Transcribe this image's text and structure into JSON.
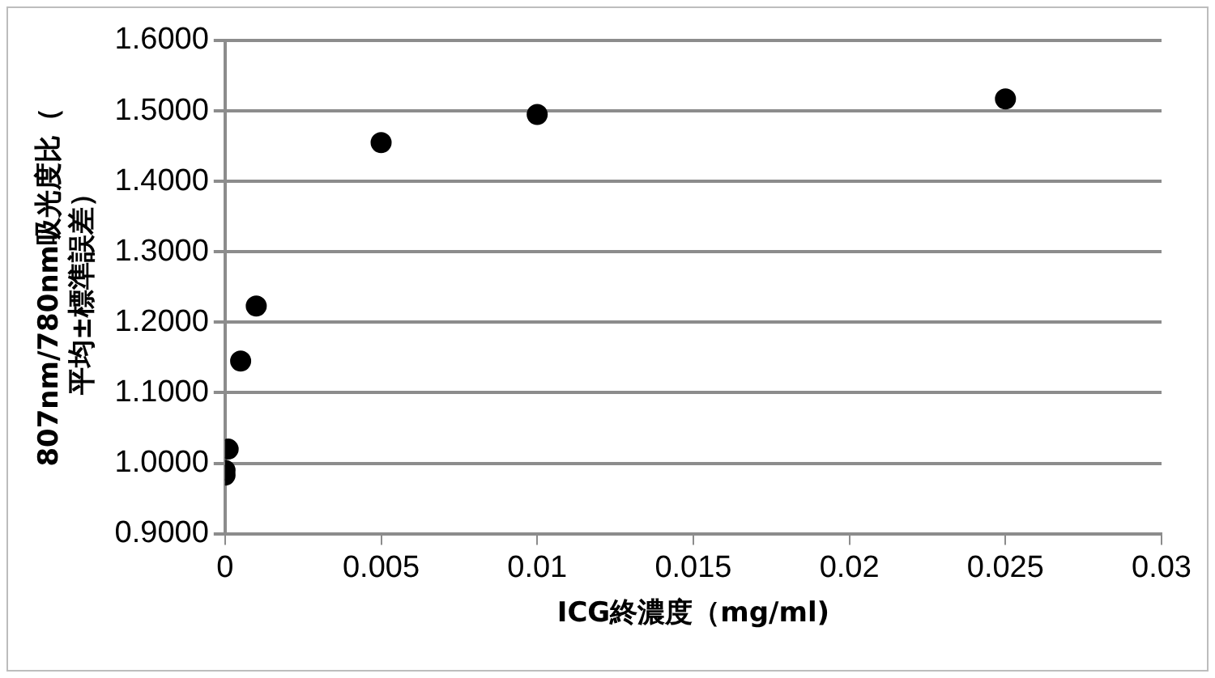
{
  "chart_data": {
    "type": "scatter",
    "xlabel": "ICG終濃度（mg/ml)",
    "ylabel": "807nm/780nm吸光度比（平均±標準誤差）",
    "series": [
      {
        "color": "#000000",
        "x": [
          0,
          0,
          0.0001,
          0.0005,
          0.001,
          0.005,
          0.01,
          0.025
        ],
        "values": [
          0.983,
          0.99,
          1.02,
          1.145,
          1.223,
          1.455,
          1.495,
          1.517
        ]
      }
    ],
    "xlim": [
      0,
      0.03
    ],
    "xticks": [
      0,
      0.005,
      0.01,
      0.015,
      0.02,
      0.025,
      0.03
    ],
    "ylim": [
      0.9,
      1.6
    ],
    "yticks": [
      {
        "value": 0.9,
        "label": "0.9000"
      },
      {
        "value": 1,
        "label": "1.0000"
      },
      {
        "value": 1.1,
        "label": "1.1000"
      },
      {
        "value": 1.2,
        "label": "1.2000"
      },
      {
        "value": 1.3,
        "label": "1.3000"
      },
      {
        "value": 1.4,
        "label": "1.4000"
      },
      {
        "value": 1.5,
        "label": "1.5000"
      },
      {
        "value": 1.6,
        "label": "1.6000"
      }
    ],
    "grid": "y",
    "legend": false,
    "marker": "circle"
  }
}
